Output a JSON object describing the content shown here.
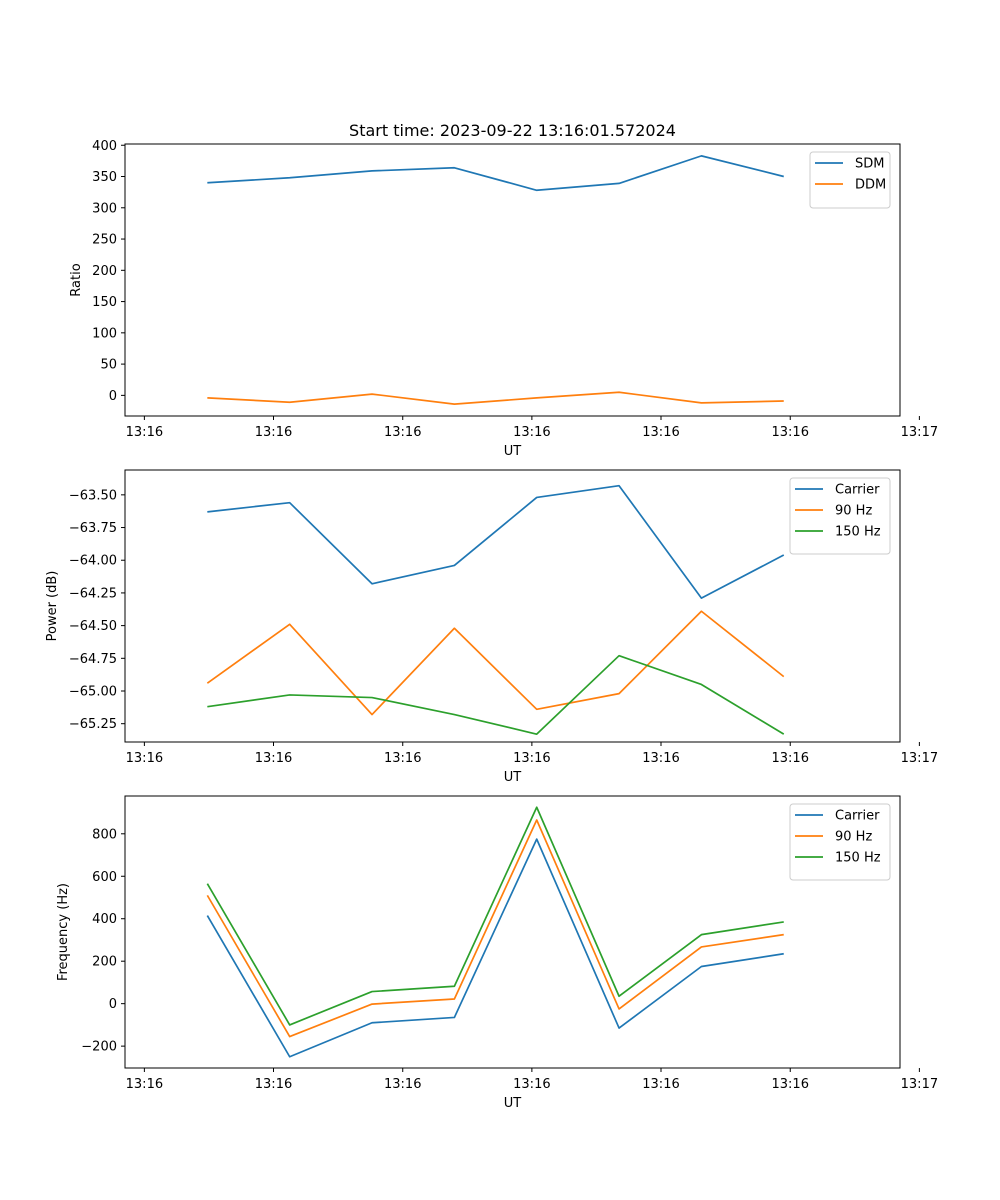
{
  "title": "Start time: 2023-09-22 13:16:01.572024",
  "chart_data": [
    {
      "type": "line",
      "ylabel": "Ratio",
      "xlabel": "UT",
      "x": [
        0.85,
        1.7,
        2.55,
        3.4,
        4.25,
        5.1,
        5.95,
        6.8
      ],
      "xlim": [
        0,
        8
      ],
      "x_ticks": [
        0.2,
        1.533,
        2.867,
        4.2,
        5.533,
        6.867,
        8.2
      ],
      "x_tick_labels": [
        "13:16",
        "13:16",
        "13:16",
        "13:16",
        "13:16",
        "13:16",
        "13:17"
      ],
      "ylim": [
        -33,
        402
      ],
      "y_ticks": [
        0,
        50,
        100,
        150,
        200,
        250,
        300,
        350,
        400
      ],
      "y_tick_labels": [
        "0",
        "50",
        "100",
        "150",
        "200",
        "250",
        "300",
        "350",
        "400"
      ],
      "legend_position": "top-right",
      "series": [
        {
          "name": "SDM",
          "color": "#1f77b4",
          "values": [
            340,
            348,
            359,
            364,
            328,
            339,
            383,
            350
          ]
        },
        {
          "name": "DDM",
          "color": "#ff7f0e",
          "values": [
            -4,
            -11,
            2,
            -14,
            -4,
            5,
            -12,
            -9
          ]
        }
      ]
    },
    {
      "type": "line",
      "ylabel": "Power (dB)",
      "xlabel": "UT",
      "x": [
        0.85,
        1.7,
        2.55,
        3.4,
        4.25,
        5.1,
        5.95,
        6.8
      ],
      "xlim": [
        0,
        8
      ],
      "x_ticks": [
        0.2,
        1.533,
        2.867,
        4.2,
        5.533,
        6.867,
        8.2
      ],
      "x_tick_labels": [
        "13:16",
        "13:16",
        "13:16",
        "13:16",
        "13:16",
        "13:16",
        "13:17"
      ],
      "ylim": [
        -65.39,
        -63.31
      ],
      "y_ticks": [
        -63.5,
        -63.75,
        -64.0,
        -64.25,
        -64.5,
        -64.75,
        -65.0,
        -65.25
      ],
      "y_tick_labels": [
        "−63.50",
        "−63.75",
        "−64.00",
        "−64.25",
        "−64.50",
        "−64.75",
        "−65.00",
        "−65.25"
      ],
      "legend_position": "top-right",
      "series": [
        {
          "name": "Carrier",
          "color": "#1f77b4",
          "values": [
            -63.63,
            -63.56,
            -64.18,
            -64.04,
            -63.52,
            -63.43,
            -64.29,
            -63.96
          ]
        },
        {
          "name": "90 Hz",
          "color": "#ff7f0e",
          "values": [
            -64.94,
            -64.49,
            -65.18,
            -64.52,
            -65.14,
            -65.02,
            -64.39,
            -64.89
          ]
        },
        {
          "name": "150 Hz",
          "color": "#2ca02c",
          "values": [
            -65.12,
            -65.03,
            -65.05,
            -65.18,
            -65.33,
            -64.73,
            -64.95,
            -65.33
          ]
        }
      ]
    },
    {
      "type": "line",
      "ylabel": "Frequency (Hz)",
      "xlabel": "UT",
      "x": [
        0.85,
        1.7,
        2.55,
        3.4,
        4.25,
        5.1,
        5.95,
        6.8
      ],
      "xlim": [
        0,
        8
      ],
      "x_ticks": [
        0.2,
        1.533,
        2.867,
        4.2,
        5.533,
        6.867,
        8.2
      ],
      "x_tick_labels": [
        "13:16",
        "13:16",
        "13:16",
        "13:16",
        "13:16",
        "13:16",
        "13:17"
      ],
      "ylim": [
        -303,
        978
      ],
      "y_ticks": [
        -200,
        0,
        200,
        400,
        600,
        800
      ],
      "y_tick_labels": [
        "−200",
        "0",
        "200",
        "400",
        "600",
        "800"
      ],
      "legend_position": "top-right",
      "series": [
        {
          "name": "Carrier",
          "color": "#1f77b4",
          "values": [
            415,
            -250,
            -90,
            -65,
            775,
            -115,
            175,
            235
          ]
        },
        {
          "name": "90 Hz",
          "color": "#ff7f0e",
          "values": [
            510,
            -155,
            -2,
            22,
            865,
            -25,
            267,
            325
          ]
        },
        {
          "name": "150 Hz",
          "color": "#2ca02c",
          "values": [
            565,
            -100,
            57,
            82,
            925,
            35,
            325,
            385
          ]
        }
      ]
    }
  ]
}
